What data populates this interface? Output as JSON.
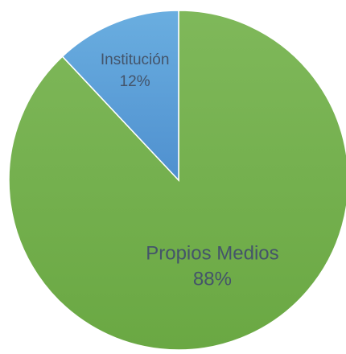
{
  "chart_data": {
    "type": "pie",
    "slices": [
      {
        "label": "Propios Medios",
        "value": 88,
        "display": "88%",
        "color": "#70AD47",
        "label_color": "#44546A"
      },
      {
        "label": "Institución",
        "value": 12,
        "display": "12%",
        "color": "#5B9BD5",
        "label_color": "#44546A"
      }
    ],
    "start_angle_deg": 0,
    "direction": "clockwise",
    "legend": "none",
    "data_labels": "inside"
  }
}
